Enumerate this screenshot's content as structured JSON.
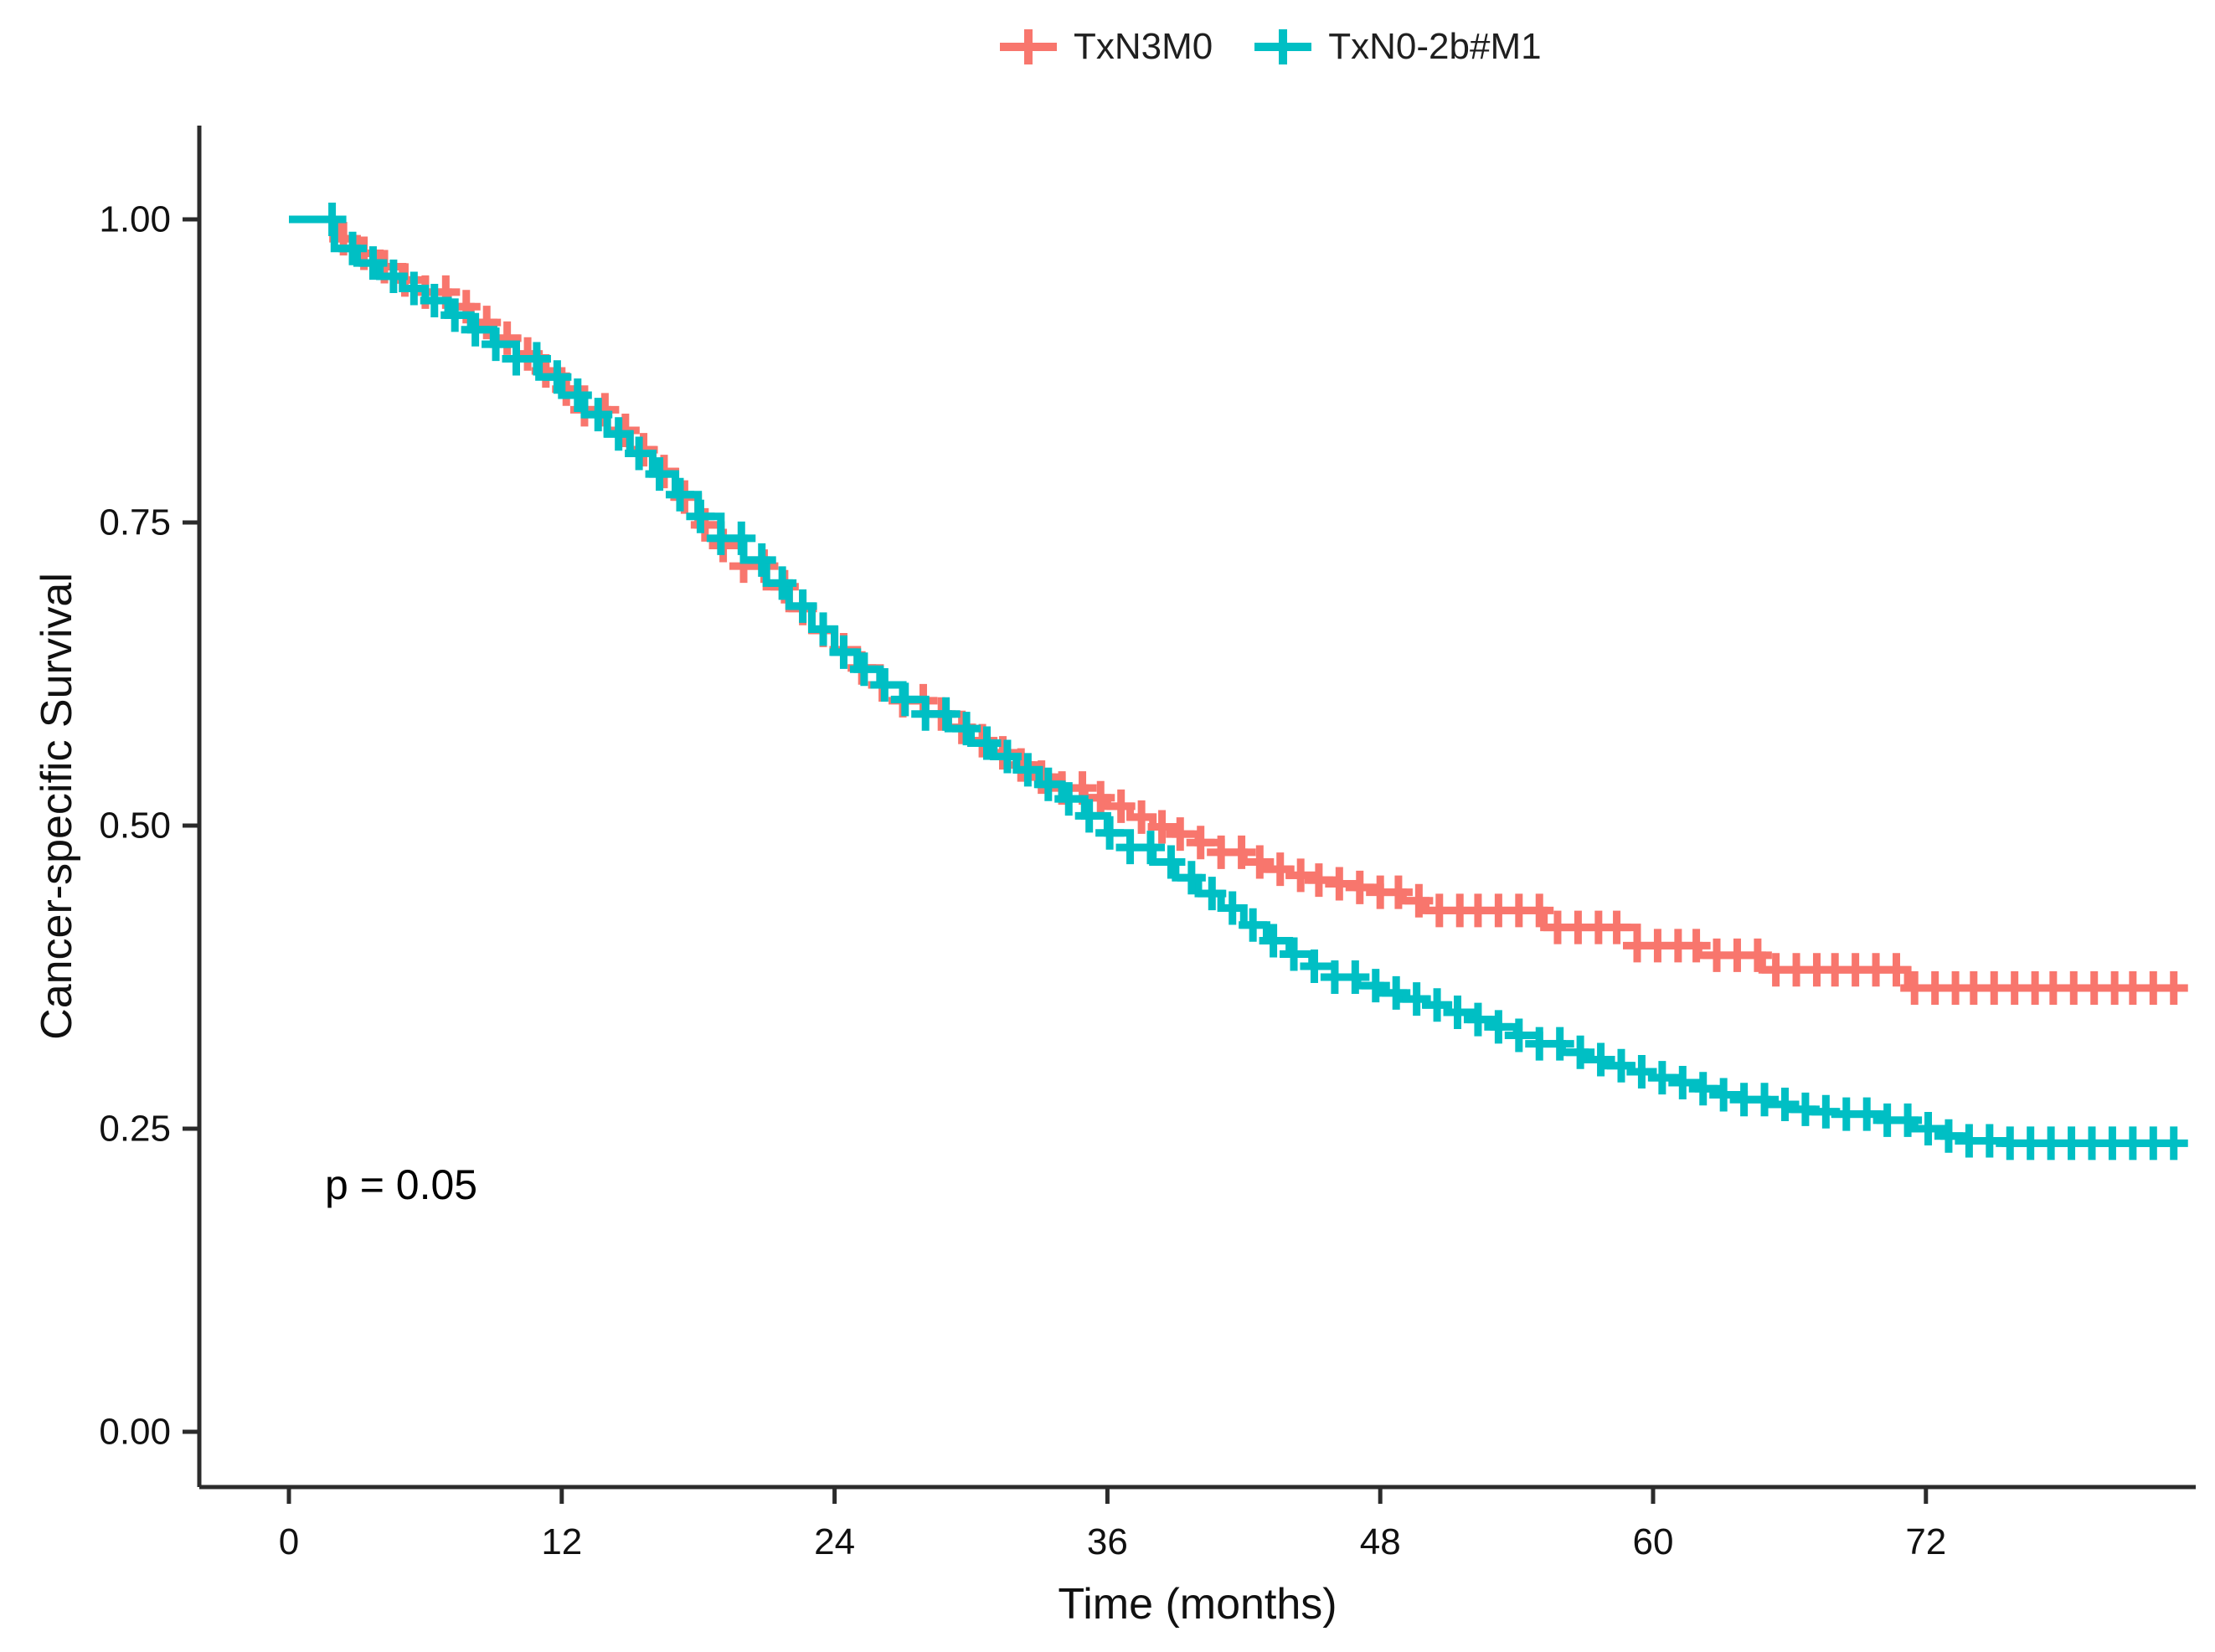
{
  "chart_data": {
    "type": "line",
    "subtype": "kaplan_meier_step",
    "title": "",
    "xlabel": "Time (months)",
    "ylabel": "Cancer-specific Survival",
    "grid": false,
    "legend_position": "top",
    "x_axis": {
      "ticks": [
        0,
        12,
        24,
        36,
        48,
        60,
        72
      ],
      "range": [
        0,
        83.5
      ]
    },
    "y_axis": {
      "ticks": [
        0,
        0.25,
        0.5,
        0.75,
        1
      ],
      "tick_labels": [
        "0.00",
        "0.25",
        "0.50",
        "0.75",
        "1.00"
      ],
      "range": [
        0,
        1
      ]
    },
    "annotation": {
      "text": "p = 0.05",
      "x_months": 1.6,
      "y_survival": 0.205
    },
    "curve_end_months": 83,
    "axis_color": "#2b2b2b",
    "series": [
      {
        "name": "TxN3M0",
        "color": "#F8766D",
        "steps": [
          [
            0,
            1.0
          ],
          [
            2.2,
            0.984
          ],
          [
            3,
            0.972
          ],
          [
            4,
            0.961
          ],
          [
            5,
            0.95
          ],
          [
            6,
            0.94
          ],
          [
            7,
            0.928
          ],
          [
            8,
            0.915
          ],
          [
            9,
            0.902
          ],
          [
            10,
            0.889
          ],
          [
            11,
            0.875
          ],
          [
            12,
            0.86
          ],
          [
            13,
            0.843
          ],
          [
            14,
            0.826
          ],
          [
            15,
            0.81
          ],
          [
            16,
            0.792
          ],
          [
            17,
            0.771
          ],
          [
            18,
            0.748
          ],
          [
            19,
            0.731
          ],
          [
            20,
            0.714
          ],
          [
            21,
            0.697
          ],
          [
            22,
            0.679
          ],
          [
            23,
            0.661
          ],
          [
            24,
            0.645
          ],
          [
            25,
            0.63
          ],
          [
            26,
            0.616
          ],
          [
            27,
            0.603
          ],
          [
            28,
            0.592
          ],
          [
            29,
            0.581
          ],
          [
            30,
            0.57
          ],
          [
            31,
            0.56
          ],
          [
            32,
            0.55
          ],
          [
            33,
            0.54
          ],
          [
            34,
            0.531
          ],
          [
            35,
            0.523
          ],
          [
            36,
            0.516
          ],
          [
            37,
            0.507
          ],
          [
            38,
            0.499
          ],
          [
            39,
            0.493
          ],
          [
            40,
            0.486
          ],
          [
            41,
            0.478
          ],
          [
            42,
            0.47
          ],
          [
            43,
            0.464
          ],
          [
            44,
            0.459
          ],
          [
            45,
            0.455
          ],
          [
            46,
            0.452
          ],
          [
            47,
            0.449
          ],
          [
            48,
            0.445
          ],
          [
            49,
            0.438
          ],
          [
            50,
            0.43
          ],
          [
            55.2,
            0.416
          ],
          [
            59.3,
            0.401
          ],
          [
            62,
            0.393
          ],
          [
            64.8,
            0.381
          ],
          [
            71.2,
            0.366
          ]
        ],
        "censor_times": [
          2.4,
          3.3,
          4.2,
          5.1,
          6,
          6.9,
          7.8,
          8.7,
          9.6,
          10.5,
          11.3,
          12.2,
          13,
          13.9,
          14.8,
          15.6,
          16.5,
          17.4,
          18.3,
          19.1,
          20,
          20.9,
          21.8,
          22.6,
          23.5,
          24.4,
          25.2,
          26.1,
          27,
          27.9,
          28.7,
          29.6,
          30.5,
          31.4,
          32.2,
          33.1,
          34,
          34.9,
          35.7,
          36.6,
          37.5,
          38.4,
          39.2,
          40.1,
          41,
          41.9,
          42.7,
          43.6,
          44.5,
          45.3,
          46.2,
          47.1,
          48,
          48.8,
          49.7,
          50.6,
          51.5,
          52.3,
          53.2,
          54.1,
          55,
          55.8,
          56.7,
          57.6,
          58.4,
          59.3,
          60.2,
          61.1,
          61.9,
          62.8,
          63.7,
          64.6,
          65.4,
          66.3,
          67.2,
          68,
          68.9,
          69.8,
          70.7,
          71.5,
          72.4,
          73.3,
          74.1,
          75,
          75.9,
          76.8,
          77.6,
          78.5,
          79.4,
          80.3,
          81.1,
          82,
          82.9
        ]
      },
      {
        "name": "TxN0-2b#M1",
        "color": "#00BFC4",
        "steps": [
          [
            0,
            1.0
          ],
          [
            2,
            0.976
          ],
          [
            3,
            0.964
          ],
          [
            4,
            0.953
          ],
          [
            5,
            0.943
          ],
          [
            6,
            0.933
          ],
          [
            7,
            0.921
          ],
          [
            8,
            0.909
          ],
          [
            9,
            0.897
          ],
          [
            10,
            0.885
          ],
          [
            11,
            0.87
          ],
          [
            12,
            0.855
          ],
          [
            13,
            0.839
          ],
          [
            14,
            0.823
          ],
          [
            15,
            0.807
          ],
          [
            16,
            0.79
          ],
          [
            17,
            0.773
          ],
          [
            18,
            0.755
          ],
          [
            19,
            0.737
          ],
          [
            20,
            0.719
          ],
          [
            21,
            0.7
          ],
          [
            22,
            0.681
          ],
          [
            23,
            0.662
          ],
          [
            24,
            0.643
          ],
          [
            25,
            0.629
          ],
          [
            26,
            0.616
          ],
          [
            27,
            0.604
          ],
          [
            28,
            0.592
          ],
          [
            29,
            0.58
          ],
          [
            30,
            0.568
          ],
          [
            31,
            0.557
          ],
          [
            32,
            0.546
          ],
          [
            33,
            0.534
          ],
          [
            34,
            0.522
          ],
          [
            35,
            0.508
          ],
          [
            36,
            0.494
          ],
          [
            37,
            0.482
          ],
          [
            38,
            0.47
          ],
          [
            39,
            0.457
          ],
          [
            40,
            0.444
          ],
          [
            41,
            0.432
          ],
          [
            42,
            0.418
          ],
          [
            43,
            0.405
          ],
          [
            44,
            0.394
          ],
          [
            45,
            0.384
          ],
          [
            46,
            0.375
          ],
          [
            47,
            0.368
          ],
          [
            48,
            0.362
          ],
          [
            49,
            0.357
          ],
          [
            50,
            0.352
          ],
          [
            51,
            0.346
          ],
          [
            52,
            0.34
          ],
          [
            53,
            0.334
          ],
          [
            54,
            0.327
          ],
          [
            55,
            0.32
          ],
          [
            56,
            0.313
          ],
          [
            57,
            0.307
          ],
          [
            58,
            0.302
          ],
          [
            59,
            0.297
          ],
          [
            60,
            0.292
          ],
          [
            61,
            0.288
          ],
          [
            62,
            0.283
          ],
          [
            63,
            0.278
          ],
          [
            64,
            0.274
          ],
          [
            65,
            0.27
          ],
          [
            66,
            0.266
          ],
          [
            67,
            0.264
          ],
          [
            68,
            0.262
          ],
          [
            70,
            0.257
          ],
          [
            71.5,
            0.25
          ],
          [
            72.8,
            0.244
          ],
          [
            73.8,
            0.24
          ],
          [
            75.5,
            0.238
          ]
        ],
        "censor_times": [
          1.9,
          2.8,
          3.7,
          4.6,
          5.5,
          6.4,
          7.3,
          8.2,
          9.1,
          10,
          10.9,
          11.8,
          12.7,
          13.6,
          14.5,
          15.4,
          16.3,
          17.2,
          18.1,
          19,
          19.9,
          20.8,
          21.7,
          22.6,
          23.5,
          24.4,
          25.3,
          26.2,
          27.1,
          28,
          28.9,
          29.8,
          30.7,
          31.6,
          32.5,
          33.4,
          34.3,
          35.2,
          36.1,
          37,
          37.9,
          38.8,
          39.7,
          40.6,
          41.5,
          42.4,
          43.3,
          44.2,
          45.1,
          46,
          46.9,
          47.8,
          48.7,
          49.6,
          50.5,
          51.4,
          52.3,
          53.2,
          54.1,
          55,
          55.9,
          56.8,
          57.7,
          58.6,
          59.5,
          60.4,
          61.3,
          62.2,
          63.1,
          64,
          64.9,
          65.8,
          66.7,
          67.6,
          68.5,
          69.4,
          70.3,
          71.2,
          72.1,
          73,
          73.9,
          74.8,
          75.7,
          76.6,
          77.5,
          78.4,
          79.3,
          80.2,
          81.1,
          82,
          82.9
        ]
      }
    ]
  }
}
